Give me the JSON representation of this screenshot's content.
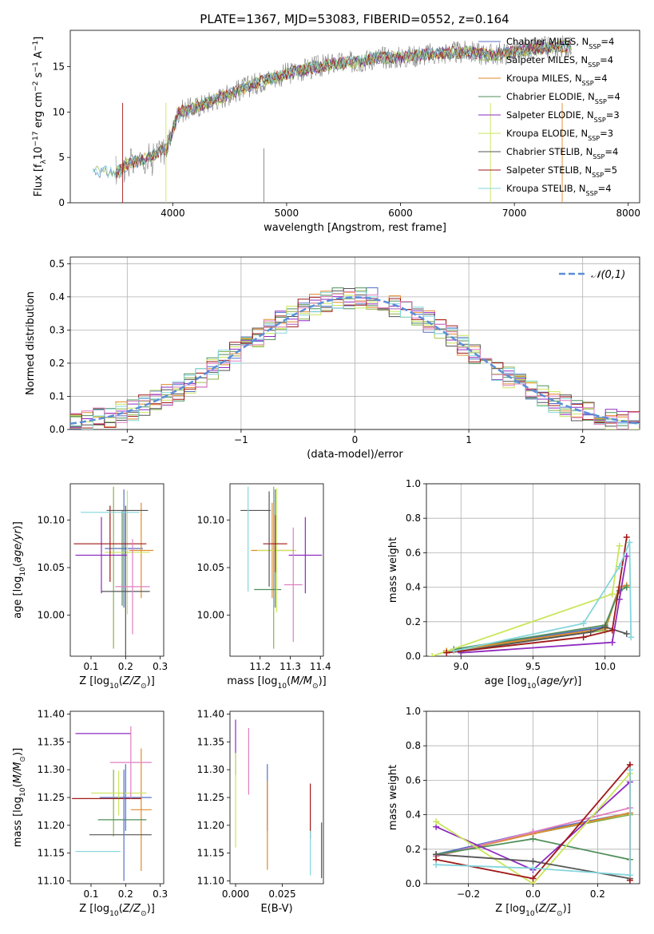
{
  "figure": {
    "title": "PLATE=1367, MJD=53083, FIBERID=0552, z=0.164"
  },
  "colors": {
    "chabrier_miles": "#5470c6",
    "salpeter_miles": "#8ab14a",
    "kroupa_miles": "#e08a2b",
    "chabrier_elodie": "#4f8f5a",
    "salpeter_elodie": "#8e2bbf",
    "kroupa_elodie": "#c9e65a",
    "chabrier_stelib": "#555555",
    "salpeter_stelib": "#a01818",
    "kroupa_stelib": "#84d6dc",
    "pink": "#e07fc0",
    "gray_data": "#808080",
    "normal": "#5a8ed8"
  },
  "chart_data": [
    {
      "id": "spectrum",
      "type": "line",
      "xlabel": "wavelength [Angstrom, rest frame]",
      "ylabel": "Flux [f_λ10^-17 erg cm^-2 s^-1 A^-1]",
      "xlim": [
        3100,
        8100
      ],
      "ylim": [
        0,
        19
      ],
      "xticks": [
        4000,
        5000,
        6000,
        7000,
        8000
      ],
      "yticks": [
        0,
        5,
        10,
        15
      ],
      "legend_position": "right",
      "legend": [
        {
          "label": "Chabrier MILES, N_SSP=4",
          "color_key": "chabrier_miles"
        },
        {
          "label": "Salpeter MILES, N_SSP=4",
          "color_key": "salpeter_miles"
        },
        {
          "label": "Kroupa MILES, N_SSP=4",
          "color_key": "kroupa_miles"
        },
        {
          "label": "Chabrier ELODIE, N_SSP=4",
          "color_key": "chabrier_elodie"
        },
        {
          "label": "Salpeter ELODIE, N_SSP=3",
          "color_key": "salpeter_elodie"
        },
        {
          "label": "Kroupa ELODIE, N_SSP=3",
          "color_key": "kroupa_elodie"
        },
        {
          "label": "Chabrier STELIB, N_SSP=4",
          "color_key": "chabrier_stelib"
        },
        {
          "label": "Salpeter STELIB, N_SSP=5",
          "color_key": "salpeter_stelib"
        },
        {
          "label": "Kroupa STELIB, N_SSP=4",
          "color_key": "kroupa_stelib"
        }
      ],
      "continuum": {
        "x": [
          3300,
          3500,
          3600,
          3800,
          3950,
          4050,
          4200,
          4400,
          4600,
          4800,
          5000,
          5200,
          5400,
          5600,
          5800,
          6000,
          6200,
          6400,
          6600,
          6800,
          7000,
          7200,
          7400,
          7500
        ],
        "y": [
          3.5,
          3.3,
          4.2,
          5.0,
          6.0,
          10.0,
          10.5,
          11.5,
          12.5,
          13.5,
          14.2,
          14.8,
          15.3,
          15.5,
          16.0,
          16.0,
          16.3,
          16.5,
          16.6,
          16.3,
          16.6,
          17.0,
          17.2,
          17.3
        ]
      }
    },
    {
      "id": "residuals",
      "type": "step",
      "xlabel": "(data-model)/error",
      "ylabel": "Normed distribution",
      "xlim": [
        -2.5,
        2.5
      ],
      "ylim": [
        0,
        0.52
      ],
      "xticks": [
        -2,
        -1,
        0,
        1,
        2
      ],
      "yticks": [
        0.0,
        0.1,
        0.2,
        0.3,
        0.4,
        0.5
      ],
      "grid": true,
      "legend_position": "top-right",
      "legend": [
        {
          "label": "𝒩(0,1)",
          "color_key": "normal",
          "style": "dashed"
        }
      ],
      "bin_width": 0.1
    },
    {
      "id": "age_vs_z",
      "type": "errorbar",
      "xlabel": "Z [log10(Z/Z⊙)]",
      "ylabel": "age [log10(age/yr)]",
      "xlim": [
        0.04,
        0.31
      ],
      "ylim": [
        9.957,
        10.138
      ],
      "xticks": [
        0.1,
        0.2,
        0.3
      ],
      "yticks": [
        10.0,
        10.05,
        10.1
      ],
      "points": [
        {
          "c": "chabrier_miles",
          "x": 0.195,
          "xe": 0.055,
          "y": 10.07,
          "ye": 0.062
        },
        {
          "c": "salpeter_miles",
          "x": 0.165,
          "xe": 0.0,
          "y": 10.05,
          "ye": 0.085
        },
        {
          "c": "kroupa_miles",
          "x": 0.245,
          "xe": 0.035,
          "y": 10.068,
          "ye": 0.05
        },
        {
          "c": "chabrier_elodie",
          "x": 0.19,
          "xe": 0.0,
          "y": 10.06,
          "ye": 0.05
        },
        {
          "c": "salpeter_elodie",
          "x": 0.13,
          "xe": 0.075,
          "y": 10.063,
          "ye": 0.04
        },
        {
          "c": "kroupa_elodie",
          "x": 0.205,
          "xe": 0.065,
          "y": 10.066,
          "ye": 0.065
        },
        {
          "c": "chabrier_stelib",
          "x": 0.2,
          "xe": 0.07,
          "y": 10.025,
          "ye": 0.09
        },
        {
          "c": "salpeter_stelib",
          "x": 0.155,
          "xe": 0.105,
          "y": 10.075,
          "ye": 0.04
        },
        {
          "c": "kroupa_stelib",
          "x": 0.155,
          "xe": 0.085,
          "y": 10.108,
          "ye": 0.0
        },
        {
          "c": "pink",
          "x": 0.22,
          "xe": 0.05,
          "y": 10.03,
          "ye": 0.05
        },
        {
          "c": "chabrier_stelib",
          "x": 0.205,
          "xe": 0.06,
          "y": 10.11,
          "ye": 0.0
        }
      ]
    },
    {
      "id": "age_vs_mass",
      "type": "errorbar",
      "xlabel": "mass [log10(M/M⊙)]",
      "ylabel": "",
      "xlim": [
        11.1,
        11.41
      ],
      "ylim": [
        9.957,
        10.138
      ],
      "xticks": [
        11.2,
        11.3,
        11.4
      ],
      "yticks": [
        10.0,
        10.05,
        10.1
      ],
      "points": [
        {
          "c": "chabrier_miles",
          "x": 11.25,
          "xe": 0.0,
          "y": 10.07,
          "ye": 0.062
        },
        {
          "c": "salpeter_miles",
          "x": 11.245,
          "xe": 0.0,
          "y": 10.05,
          "ye": 0.085
        },
        {
          "c": "kroupa_miles",
          "x": 11.24,
          "xe": 0.07,
          "y": 10.068,
          "ye": 0.05
        },
        {
          "c": "chabrier_elodie",
          "x": 11.225,
          "xe": 0.045,
          "y": 10.027,
          "ye": 0.0
        },
        {
          "c": "salpeter_elodie",
          "x": 11.35,
          "xe": 0.055,
          "y": 10.063,
          "ye": 0.04
        },
        {
          "c": "kroupa_elodie",
          "x": 11.255,
          "xe": 0.065,
          "y": 10.068,
          "ye": 0.065
        },
        {
          "c": "chabrier_stelib",
          "x": 11.185,
          "xe": 0.05,
          "y": 10.11,
          "ye": 0.0
        },
        {
          "c": "salpeter_stelib",
          "x": 11.25,
          "xe": 0.04,
          "y": 10.075,
          "ye": 0.03
        },
        {
          "c": "kroupa_stelib",
          "x": 11.16,
          "xe": 0.0,
          "y": 10.08,
          "ye": 0.055
        },
        {
          "c": "pink",
          "x": 11.31,
          "xe": 0.03,
          "y": 10.032,
          "ye": 0.06
        },
        {
          "c": "chabrier_stelib",
          "x": 11.23,
          "xe": 0.0,
          "y": 10.08,
          "ye": 0.05
        }
      ]
    },
    {
      "id": "weight_vs_age",
      "type": "line",
      "xlabel": "age [log10(age/yr)]",
      "ylabel": "mass weight",
      "xlim": [
        8.76,
        10.24
      ],
      "ylim": [
        0,
        1.0
      ],
      "xticks": [
        9.0,
        9.5,
        10.0
      ],
      "yticks": [
        0.0,
        0.2,
        0.4,
        0.6,
        0.8,
        1.0
      ],
      "grid": true,
      "series": [
        {
          "c": "chabrier_miles",
          "x": [
            8.9,
            10.0,
            10.1,
            10.15
          ],
          "y": [
            0.03,
            0.17,
            0.4,
            0.41
          ]
        },
        {
          "c": "salpeter_miles",
          "x": [
            8.9,
            10.0,
            10.1,
            10.15
          ],
          "y": [
            0.03,
            0.15,
            0.4,
            0.41
          ]
        },
        {
          "c": "kroupa_miles",
          "x": [
            8.9,
            10.0,
            10.1,
            10.15
          ],
          "y": [
            0.03,
            0.16,
            0.4,
            0.41
          ]
        },
        {
          "c": "chabrier_elodie",
          "x": [
            8.95,
            10.0,
            10.1,
            10.15
          ],
          "y": [
            0.04,
            0.18,
            0.38,
            0.4
          ]
        },
        {
          "c": "salpeter_elodie",
          "x": [
            9.0,
            10.05,
            10.1,
            10.15
          ],
          "y": [
            0.02,
            0.08,
            0.33,
            0.58
          ]
        },
        {
          "c": "kroupa_elodie",
          "x": [
            8.8,
            10.05,
            10.1
          ],
          "y": [
            0.0,
            0.36,
            0.64
          ]
        },
        {
          "c": "chabrier_stelib",
          "x": [
            9.0,
            9.9,
            10.0,
            10.15
          ],
          "y": [
            0.03,
            0.14,
            0.17,
            0.13
          ]
        },
        {
          "c": "salpeter_stelib",
          "x": [
            8.9,
            9.85,
            10.05,
            10.15
          ],
          "y": [
            0.02,
            0.11,
            0.15,
            0.69
          ]
        },
        {
          "c": "kroupa_stelib",
          "x": [
            8.95,
            9.85,
            10.1,
            10.17,
            10.18
          ],
          "y": [
            0.03,
            0.19,
            0.52,
            0.66,
            0.11
          ]
        }
      ]
    },
    {
      "id": "mass_vs_z",
      "type": "errorbar",
      "xlabel": "Z [log10(Z/Z⊙)]",
      "ylabel": "mass [log10(M/M⊙)]",
      "xlim": [
        0.04,
        0.31
      ],
      "ylim": [
        11.095,
        11.405
      ],
      "xticks": [
        0.1,
        0.2,
        0.3
      ],
      "yticks": [
        11.1,
        11.15,
        11.2,
        11.25,
        11.3,
        11.35,
        11.4
      ],
      "points": [
        {
          "c": "chabrier_miles",
          "x": 0.2,
          "xe": 0.075,
          "y": 11.25,
          "ye": 0.06
        },
        {
          "c": "salpeter_miles",
          "x": 0.165,
          "xe": 0.0,
          "y": 11.24,
          "ye": 0.06
        },
        {
          "c": "kroupa_miles",
          "x": 0.245,
          "xe": 0.03,
          "y": 11.228,
          "ye": 0.11
        },
        {
          "c": "chabrier_elodie",
          "x": 0.19,
          "xe": 0.07,
          "y": 11.21,
          "ye": 0.0
        },
        {
          "c": "salpeter_elodie",
          "x": 0.135,
          "xe": 0.08,
          "y": 11.365,
          "ye": 0.0
        },
        {
          "c": "kroupa_elodie",
          "x": 0.18,
          "xe": 0.08,
          "y": 11.258,
          "ye": 0.04
        },
        {
          "c": "chabrier_stelib",
          "x": 0.185,
          "xe": 0.09,
          "y": 11.183,
          "ye": 0.0
        },
        {
          "c": "salpeter_stelib",
          "x": 0.145,
          "xe": 0.1,
          "y": 11.248,
          "ye": 0.0
        },
        {
          "c": "kroupa_stelib",
          "x": 0.12,
          "xe": 0.065,
          "y": 11.153,
          "ye": 0.0
        },
        {
          "c": "pink",
          "x": 0.215,
          "xe": 0.06,
          "y": 11.313,
          "ye": 0.065
        },
        {
          "c": "chabrier_miles",
          "x": 0.195,
          "xe": 0.0,
          "y": 11.2,
          "ye": 0.1
        }
      ]
    },
    {
      "id": "mass_vs_ebv",
      "type": "errorbar",
      "xlabel": "E(B-V)",
      "ylabel": "",
      "xlim": [
        -0.003,
        0.047
      ],
      "ylim": [
        11.095,
        11.405
      ],
      "xticks": [
        0.0,
        0.025
      ],
      "xticklabels": [
        "0.000",
        "0.025"
      ],
      "yticks": [
        11.1,
        11.15,
        11.2,
        11.25,
        11.3,
        11.35,
        11.4
      ],
      "points": [
        {
          "c": "salpeter_elodie",
          "x": 0.0,
          "xe": 0.0,
          "y": 11.34,
          "ye": 0.05
        },
        {
          "c": "kroupa_elodie",
          "x": 0.0,
          "xe": 0.0,
          "y": 11.245,
          "ye": 0.085
        },
        {
          "c": "chabrier_miles",
          "x": 0.017,
          "xe": 0.0,
          "y": 11.25,
          "ye": 0.06
        },
        {
          "c": "kroupa_miles",
          "x": 0.017,
          "xe": 0.0,
          "y": 11.2,
          "ye": 0.08
        },
        {
          "c": "pink",
          "x": 0.007,
          "xe": 0.0,
          "y": 11.315,
          "ye": 0.06
        },
        {
          "c": "salpeter_stelib",
          "x": 0.04,
          "xe": 0.0,
          "y": 11.225,
          "ye": 0.05
        },
        {
          "c": "kroupa_stelib",
          "x": 0.04,
          "xe": 0.0,
          "y": 11.15,
          "ye": 0.04
        },
        {
          "c": "chabrier_stelib",
          "x": 0.046,
          "xe": 0.0,
          "y": 11.155,
          "ye": 0.05
        }
      ]
    },
    {
      "id": "weight_vs_z",
      "type": "line",
      "xlabel": "Z [log10(Z/Z⊙)]",
      "ylabel": "mass weight",
      "xlim": [
        -0.33,
        0.33
      ],
      "ylim": [
        0,
        1.0
      ],
      "xticks": [
        -0.2,
        0.0,
        0.2
      ],
      "yticks": [
        0.0,
        0.2,
        0.4,
        0.6,
        0.8,
        1.0
      ],
      "grid": true,
      "series": [
        {
          "c": "chabrier_miles",
          "x": [
            -0.3,
            0.0,
            0.3
          ],
          "y": [
            0.17,
            0.3,
            0.41
          ]
        },
        {
          "c": "salpeter_miles",
          "x": [
            -0.3,
            0.0,
            0.3
          ],
          "y": [
            0.16,
            0.29,
            0.4
          ]
        },
        {
          "c": "kroupa_miles",
          "x": [
            -0.3,
            0.0,
            0.3
          ],
          "y": [
            0.16,
            0.29,
            0.41
          ]
        },
        {
          "c": "pink",
          "x": [
            -0.3,
            0.0,
            0.3
          ],
          "y": [
            0.16,
            0.3,
            0.44
          ]
        },
        {
          "c": "chabrier_elodie",
          "x": [
            -0.3,
            0.0,
            0.3
          ],
          "y": [
            0.17,
            0.26,
            0.14
          ]
        },
        {
          "c": "salpeter_elodie",
          "x": [
            -0.3,
            0.0,
            0.3
          ],
          "y": [
            0.33,
            0.08,
            0.59
          ]
        },
        {
          "c": "kroupa_elodie",
          "x": [
            -0.3,
            0.0,
            0.3
          ],
          "y": [
            0.36,
            0.0,
            0.64
          ]
        },
        {
          "c": "chabrier_stelib",
          "x": [
            -0.3,
            0.0,
            0.3
          ],
          "y": [
            0.17,
            0.13,
            0.03
          ]
        },
        {
          "c": "salpeter_stelib",
          "x": [
            -0.3,
            0.0,
            0.3,
            0.3
          ],
          "y": [
            0.14,
            0.03,
            0.69,
            0.02
          ]
        },
        {
          "c": "kroupa_stelib",
          "x": [
            -0.3,
            0.0,
            0.3,
            0.3
          ],
          "y": [
            0.11,
            0.09,
            0.05,
            0.66
          ]
        }
      ]
    }
  ]
}
